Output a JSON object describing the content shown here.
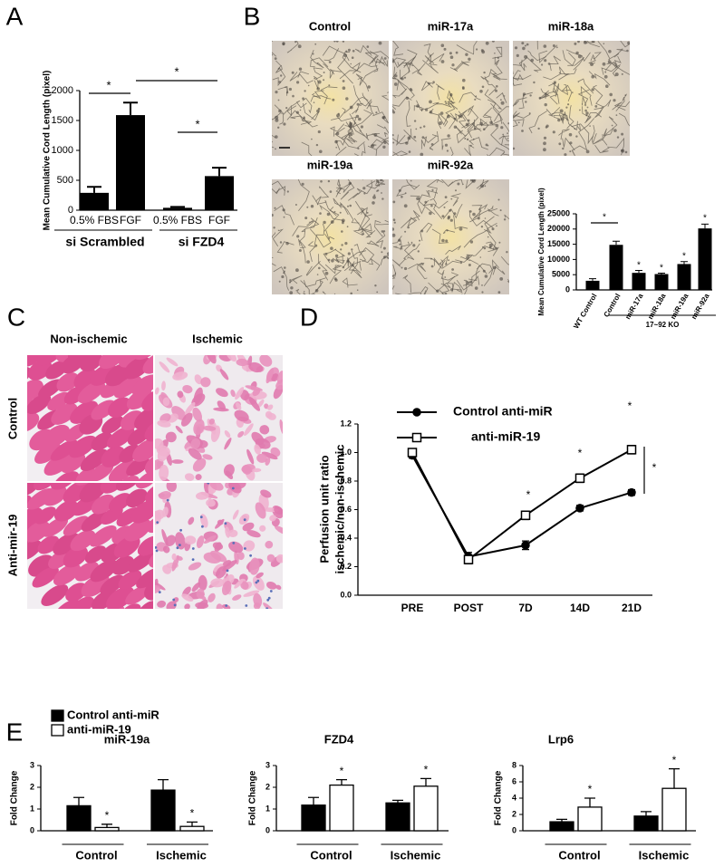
{
  "chart_data": [
    {
      "type": "bar",
      "panel": "A",
      "ylabel": "Mean Cumulative Cord Length (pixel)",
      "categories": [
        "0.5% FBS",
        "FGF",
        "0.5% FBS",
        "FGF"
      ],
      "group_labels": [
        "si Scrambled",
        "si FZD4"
      ],
      "values": [
        290,
        1590,
        40,
        570
      ],
      "errors": [
        100,
        210,
        15,
        140
      ],
      "color": "#000000",
      "ylim": [
        0,
        2000
      ],
      "yticks": [
        0,
        500,
        1000,
        1500,
        2000
      ],
      "annotations": [
        "*",
        "*",
        "*"
      ]
    },
    {
      "type": "bar",
      "ylabel": "Mean Cumulative Cord Length (pixel)",
      "categories": [
        "WT Control",
        "Control",
        "miR-17a",
        "miR-18a",
        "miR-19a",
        "miR-92a"
      ],
      "group_labels": [
        "17~92 KO"
      ],
      "values": [
        3000,
        14800,
        5600,
        5200,
        8500,
        20200
      ],
      "errors": [
        700,
        1200,
        800,
        300,
        800,
        1400
      ],
      "color": "#000000",
      "ylim": [
        0,
        25000
      ],
      "yticks": [
        0,
        5000,
        10000,
        15000,
        20000,
        25000
      ],
      "annotations": [
        "*",
        "*",
        "*",
        "*",
        "*"
      ]
    },
    {
      "type": "line",
      "panel": "D",
      "ylabel": [
        "Perfusion unit ratio",
        "ischemic/non-ischemic"
      ],
      "categories": [
        "PRE",
        "POST",
        "7D",
        "14D",
        "21D"
      ],
      "series": [
        {
          "name": "Control anti-miR",
          "color": "#000000",
          "marker": "circle",
          "marker_fill": "#000000",
          "values": [
            0.98,
            0.27,
            0.35,
            0.61,
            0.72
          ],
          "errors": [
            0.02,
            0.03,
            0.03,
            0.02,
            0.02
          ]
        },
        {
          "name": "anti-miR-19",
          "color": "#000000",
          "marker": "square",
          "marker_fill": "#ffffff",
          "values": [
            1.0,
            0.25,
            0.56,
            0.82,
            1.02
          ],
          "errors": [
            0.02,
            0.03,
            0.03,
            0.03,
            0.03
          ]
        }
      ],
      "ylim": [
        0,
        1.2
      ],
      "yticks": [
        {
          "value": 0,
          "label": "0.0"
        },
        0.2,
        0.4,
        0.6,
        0.8,
        {
          "value": 1,
          "label": "1.0"
        },
        1.2
      ],
      "legend": true,
      "annotations": [
        "*",
        "*",
        "*",
        "*"
      ]
    },
    {
      "type": "grouped_bar",
      "panel": "E",
      "title": "miR-19a",
      "ylabel": "Fold Change",
      "categories": [
        "Control",
        "Ischemic"
      ],
      "series": [
        {
          "name": "Control anti-miR",
          "color": "#000000",
          "values": [
            1.15,
            1.87
          ],
          "errors": [
            0.38,
            0.48
          ]
        },
        {
          "name": "anti-miR-19",
          "color": "#ffffff",
          "values": [
            0.15,
            0.2
          ],
          "errors": [
            0.15,
            0.2
          ]
        }
      ],
      "ylim": [
        0,
        3
      ],
      "yticks": [
        0,
        1,
        2,
        3
      ],
      "legend": true,
      "annotations": [
        "*",
        "*"
      ]
    },
    {
      "type": "grouped_bar",
      "title": "FZD4",
      "ylabel": "Fold Change",
      "categories": [
        "Control",
        "Ischemic"
      ],
      "series": [
        {
          "color": "#000000",
          "values": [
            1.18,
            1.28
          ],
          "errors": [
            0.35,
            0.12
          ]
        },
        {
          "color": "#ffffff",
          "values": [
            2.1,
            2.05
          ],
          "errors": [
            0.25,
            0.35
          ]
        }
      ],
      "ylim": [
        0,
        3
      ],
      "yticks": [
        0,
        1,
        2,
        3
      ],
      "annotations": [
        "*",
        "*"
      ]
    },
    {
      "type": "grouped_bar",
      "title": "Lrp6",
      "ylabel": "Fold Change",
      "categories": [
        "Control",
        "Ischemic"
      ],
      "series": [
        {
          "color": "#000000",
          "values": [
            1.1,
            1.8
          ],
          "errors": [
            0.3,
            0.55
          ]
        },
        {
          "color": "#ffffff",
          "values": [
            2.9,
            5.2
          ],
          "errors": [
            1.1,
            2.4
          ]
        }
      ],
      "ylim": [
        0,
        8
      ],
      "yticks": [
        0,
        2,
        4,
        6,
        8
      ],
      "annotations": [
        "*",
        "*"
      ]
    }
  ],
  "figure": {
    "panel_B": {
      "letter": "B",
      "labels": [
        "Control",
        "miR-17a",
        "miR-18a",
        "miR-19a",
        "miR-92a"
      ]
    },
    "panel_C": {
      "letter": "C",
      "columns": [
        "Non-ischemic",
        "Ischemic"
      ],
      "rows": [
        "Control",
        "Anti-mir-19"
      ]
    }
  }
}
